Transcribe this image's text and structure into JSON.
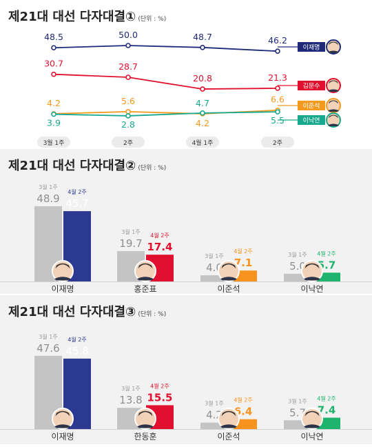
{
  "chart_data": [
    {
      "type": "line",
      "title": "제21대 대선 다자대결①",
      "unit": "(단위 : %)",
      "categories": [
        "3월 1주",
        "2주",
        "4월 1주",
        "2주"
      ],
      "series": [
        {
          "name": "이재명",
          "values": [
            48.5,
            50.0,
            48.7,
            46.2
          ],
          "color": "#1e2a78"
        },
        {
          "name": "김문수",
          "values": [
            30.7,
            28.7,
            20.8,
            21.3
          ],
          "color": "#e0102e"
        },
        {
          "name": "이준석",
          "values": [
            4.2,
            5.6,
            4.2,
            6.6
          ],
          "color": "#f39a1e"
        },
        {
          "name": "이낙연",
          "values": [
            3.9,
            2.8,
            4.7,
            5.5
          ],
          "color": "#17a88e"
        }
      ]
    },
    {
      "type": "bar",
      "title": "제21대 대선 다자대결②",
      "unit": "(단위 : %)",
      "categories": [
        "이재명",
        "홍준표",
        "이준석",
        "이낙연"
      ],
      "series": [
        {
          "name": "3월 1주",
          "values": [
            48.9,
            19.7,
            4.0,
            5.0
          ]
        },
        {
          "name": "4월 2주",
          "values": [
            45.7,
            17.4,
            7.1,
            5.7
          ]
        }
      ],
      "colors": [
        "#2b3990",
        "#e0102e",
        "#f7931e",
        "#1fb46e"
      ],
      "ylim": [
        0,
        50
      ]
    },
    {
      "type": "bar",
      "title": "제21대 대선 다자대결③",
      "unit": "(단위 : %)",
      "categories": [
        "이재명",
        "한동훈",
        "이준석",
        "이낙연"
      ],
      "series": [
        {
          "name": "3월 1주",
          "values": [
            47.6,
            13.8,
            4.2,
            5.7
          ]
        },
        {
          "name": "4월 2주",
          "values": [
            45.8,
            15.5,
            6.4,
            7.4
          ]
        }
      ],
      "colors": [
        "#2b3990",
        "#e0102e",
        "#f7931e",
        "#1fb46e"
      ],
      "ylim": [
        0,
        50
      ]
    }
  ]
}
